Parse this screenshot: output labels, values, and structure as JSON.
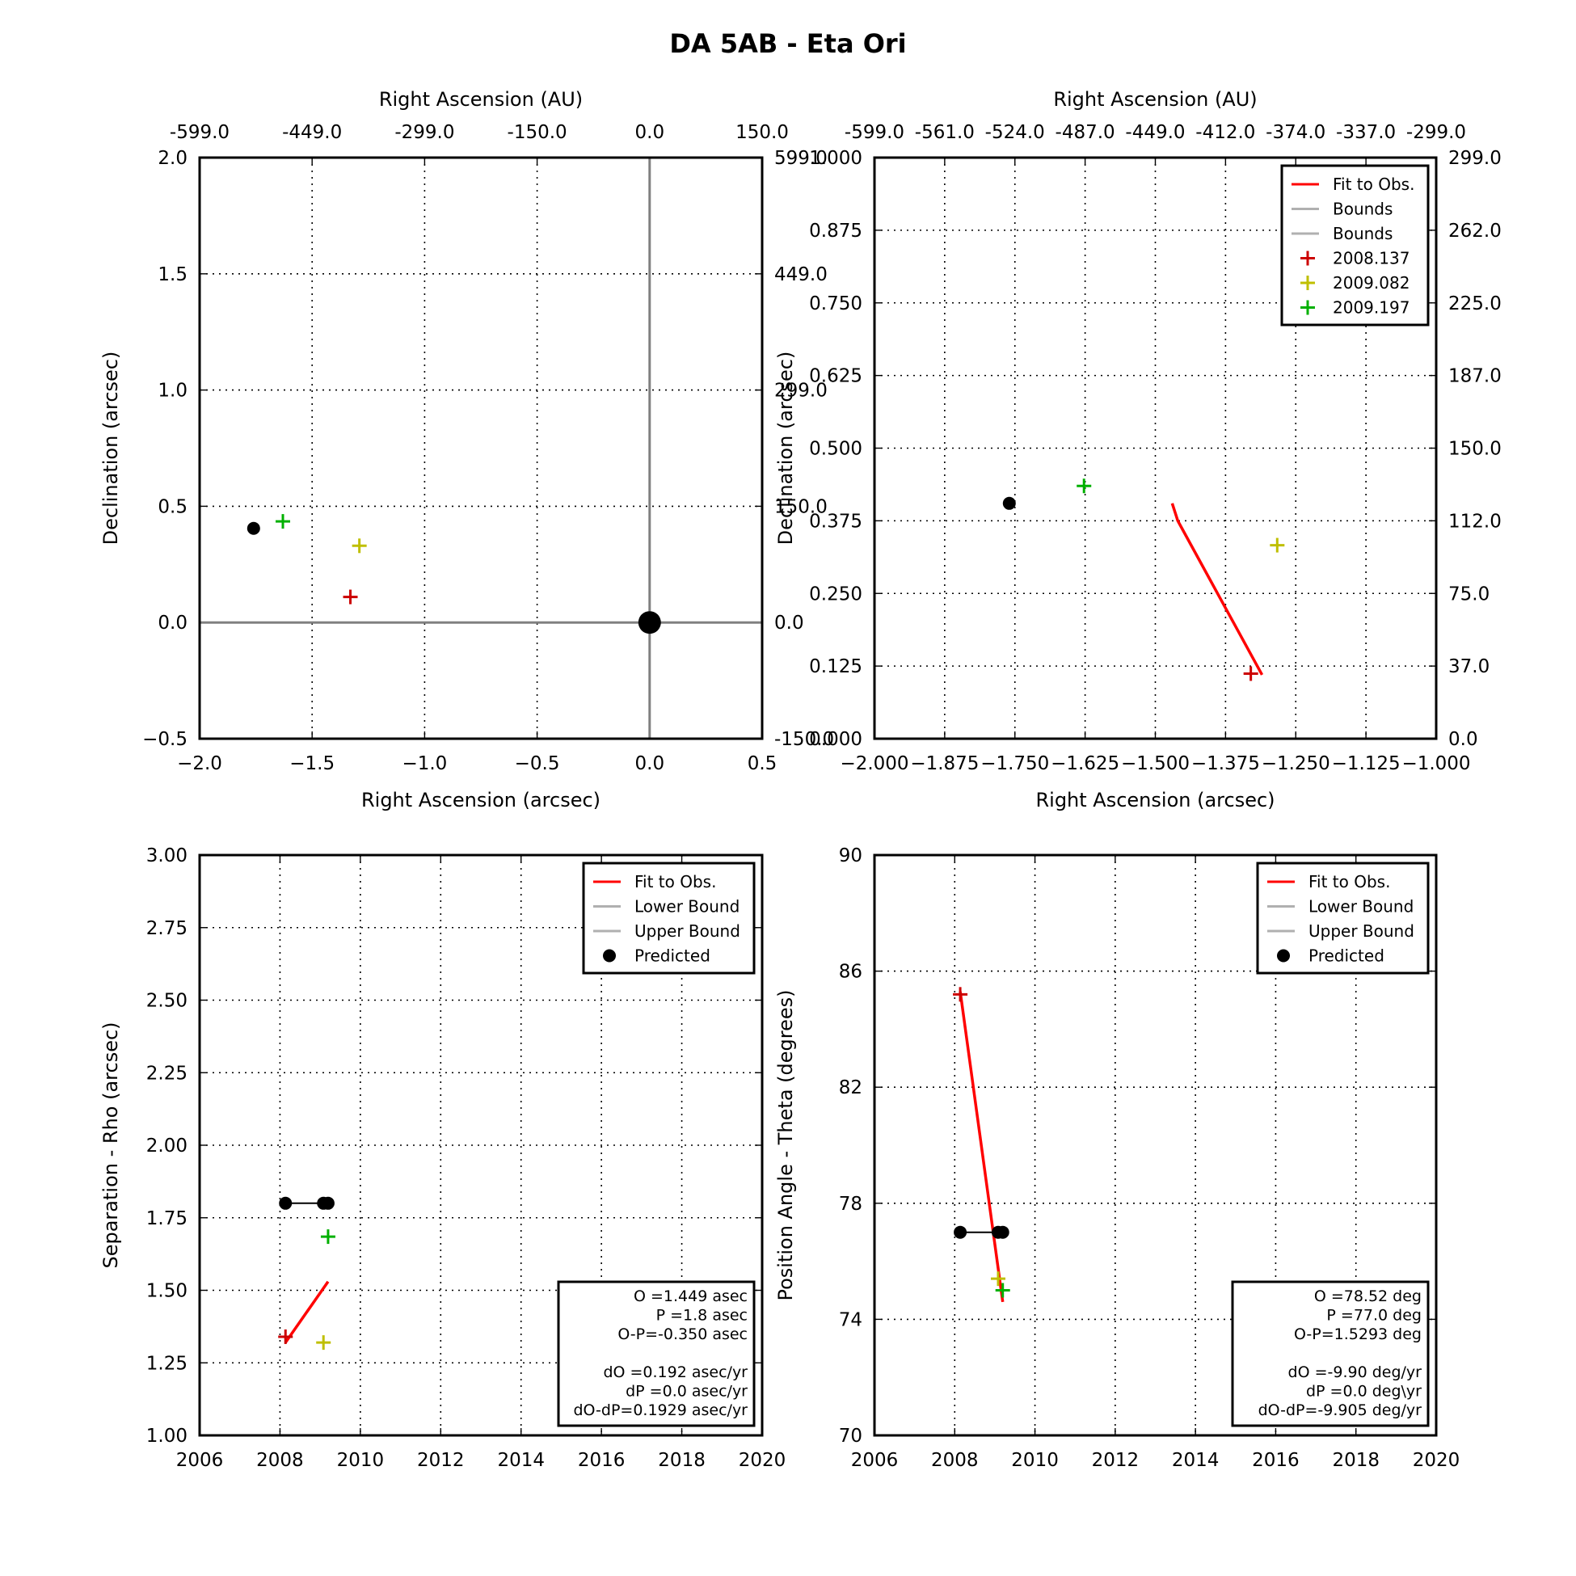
{
  "figure": {
    "title": "DA    5AB -  Eta Ori"
  },
  "chart_data": [
    {
      "id": "p1",
      "type": "scatter",
      "xlabel": "Right Ascension (arcsec)",
      "ylabel": "Declination (arcsec)",
      "top_label": "Right Ascension (AU)",
      "xlim": [
        -2.0,
        0.5
      ],
      "ylim": [
        -0.5,
        2.0
      ],
      "x_ticks": [
        "−2.0",
        "−1.5",
        "−1.0",
        "−0.5",
        "0.0",
        "0.5"
      ],
      "y_ticks": [
        "−0.5",
        "0.0",
        "0.5",
        "1.0",
        "1.5",
        "2.0"
      ],
      "top_ticks": [
        "-599.0",
        "-449.0",
        "-299.0",
        "-150.0",
        "0.0",
        "150.0"
      ],
      "right_ticks": [
        "-150.0",
        "0.0",
        "150.0",
        "299.0",
        "449.0",
        "599.0"
      ],
      "grid": true,
      "primary": {
        "x": 0.0,
        "y": 0.0
      },
      "predicted": {
        "x": -1.76,
        "y": 0.405
      },
      "observations": [
        {
          "name": "2008.137",
          "x": -1.33,
          "y": 0.11,
          "color": "#cc0000"
        },
        {
          "name": "2009.082",
          "x": -1.29,
          "y": 0.33,
          "color": "#bfbf00"
        },
        {
          "name": "2009.197",
          "x": -1.63,
          "y": 0.435,
          "color": "#00b000"
        }
      ]
    },
    {
      "id": "p2",
      "type": "scatter",
      "xlabel": "Right Ascension (arcsec)",
      "ylabel": "Declination (arcsec)",
      "top_label": "Right Ascension (AU)",
      "xlim": [
        -2.0,
        -1.0
      ],
      "ylim": [
        0.0,
        1.0
      ],
      "x_ticks": [
        "−2.000",
        "−1.875",
        "−1.750",
        "−1.625",
        "−1.500",
        "−1.375",
        "−1.250",
        "−1.125",
        "−1.000"
      ],
      "y_ticks": [
        "0.000",
        "0.125",
        "0.250",
        "0.375",
        "0.500",
        "0.625",
        "0.750",
        "0.875",
        "1.000"
      ],
      "top_ticks": [
        "-599.0",
        "-561.0",
        "-524.0",
        "-487.0",
        "-449.0",
        "-412.0",
        "-374.0",
        "-337.0",
        "-299.0"
      ],
      "right_ticks": [
        "0.0",
        "37.0",
        "75.0",
        "112.0",
        "150.0",
        "187.0",
        "225.0",
        "262.0",
        "299.0"
      ],
      "grid": true,
      "fit_line": {
        "x": [
          -1.47,
          -1.46,
          -1.31
        ],
        "y": [
          0.405,
          0.375,
          0.11
        ]
      },
      "predicted": {
        "x": -1.76,
        "y": 0.405
      },
      "observations": [
        {
          "name": "2008.137",
          "x": -1.33,
          "y": 0.112,
          "color": "#cc0000"
        },
        {
          "name": "2009.082",
          "x": -1.283,
          "y": 0.333,
          "color": "#bfbf00"
        },
        {
          "name": "2009.197",
          "x": -1.627,
          "y": 0.435,
          "color": "#00b000"
        }
      ],
      "legend": {
        "position": "top-right",
        "entries": [
          {
            "label": "Fit to Obs.",
            "kind": "line",
            "color": "#ff0000"
          },
          {
            "label": "Bounds",
            "kind": "line",
            "color": "#b0b0b0"
          },
          {
            "label": "Bounds",
            "kind": "line",
            "color": "#b0b0b0"
          },
          {
            "label": "2008.137",
            "kind": "plus",
            "color": "#cc0000"
          },
          {
            "label": "2009.082",
            "kind": "plus",
            "color": "#bfbf00"
          },
          {
            "label": "2009.197",
            "kind": "plus",
            "color": "#00b000"
          }
        ]
      }
    },
    {
      "id": "p3",
      "type": "line",
      "xlabel": "",
      "ylabel": "Separation - Rho (arcsec)",
      "xlim": [
        2006,
        2020
      ],
      "ylim": [
        1.0,
        3.0
      ],
      "x_ticks": [
        "2006",
        "2008",
        "2010",
        "2012",
        "2014",
        "2016",
        "2018",
        "2020"
      ],
      "y_ticks": [
        "1.00",
        "1.25",
        "1.50",
        "1.75",
        "2.00",
        "2.25",
        "2.50",
        "2.75",
        "3.00"
      ],
      "grid": true,
      "fit_line": {
        "x": [
          2008.137,
          2009.197
        ],
        "y": [
          1.32,
          1.53
        ]
      },
      "predicted": {
        "x": [
          2008.137,
          2009.082,
          2009.197
        ],
        "y": [
          1.8,
          1.8,
          1.8
        ]
      },
      "observations": [
        {
          "x": 2008.137,
          "y": 1.34,
          "color": "#cc0000"
        },
        {
          "x": 2009.082,
          "y": 1.32,
          "color": "#bfbf00"
        },
        {
          "x": 2009.197,
          "y": 1.685,
          "color": "#00b000"
        }
      ],
      "legend": {
        "position": "top-right",
        "entries": [
          {
            "label": "Fit to Obs.",
            "kind": "line",
            "color": "#ff0000"
          },
          {
            "label": "Lower Bound",
            "kind": "line",
            "color": "#b0b0b0"
          },
          {
            "label": "Upper Bound",
            "kind": "line",
            "color": "#b0b0b0"
          },
          {
            "label": "Predicted",
            "kind": "dot",
            "color": "#000000"
          }
        ]
      },
      "stats": [
        "O  =1.449 asec",
        "P  =1.8 asec",
        "O-P=-0.350 asec",
        "",
        "dO  =0.192 asec/yr",
        "dP  =0.0 asec/yr",
        "dO-dP=0.1929 asec/yr"
      ]
    },
    {
      "id": "p4",
      "type": "line",
      "xlabel": "",
      "ylabel": "Position Angle - Theta (degrees)",
      "xlim": [
        2006,
        2020
      ],
      "ylim": [
        70,
        90
      ],
      "x_ticks": [
        "2006",
        "2008",
        "2010",
        "2012",
        "2014",
        "2016",
        "2018",
        "2020"
      ],
      "y_ticks": [
        "70",
        "74",
        "78",
        "82",
        "86",
        "90"
      ],
      "grid": true,
      "fit_line": {
        "x": [
          2008.137,
          2009.197
        ],
        "y": [
          85.3,
          74.6
        ]
      },
      "predicted": {
        "x": [
          2008.137,
          2009.082,
          2009.197
        ],
        "y": [
          77.0,
          77.0,
          77.0
        ]
      },
      "observations": [
        {
          "x": 2008.137,
          "y": 85.2,
          "color": "#cc0000"
        },
        {
          "x": 2009.082,
          "y": 75.4,
          "color": "#bfbf00"
        },
        {
          "x": 2009.197,
          "y": 75.0,
          "color": "#00b000"
        }
      ],
      "legend": {
        "position": "top-right",
        "entries": [
          {
            "label": "Fit to Obs.",
            "kind": "line",
            "color": "#ff0000"
          },
          {
            "label": "Lower Bound",
            "kind": "line",
            "color": "#b0b0b0"
          },
          {
            "label": "Upper Bound",
            "kind": "line",
            "color": "#b0b0b0"
          },
          {
            "label": "Predicted",
            "kind": "dot",
            "color": "#000000"
          }
        ]
      },
      "stats": [
        "O  =78.52 deg",
        "P  =77.0 deg",
        "O-P=1.5293 deg",
        "",
        "dO  =-9.90 deg/yr",
        "dP  =0.0 deg\\yr",
        "dO-dP=-9.905 deg/yr"
      ]
    }
  ]
}
